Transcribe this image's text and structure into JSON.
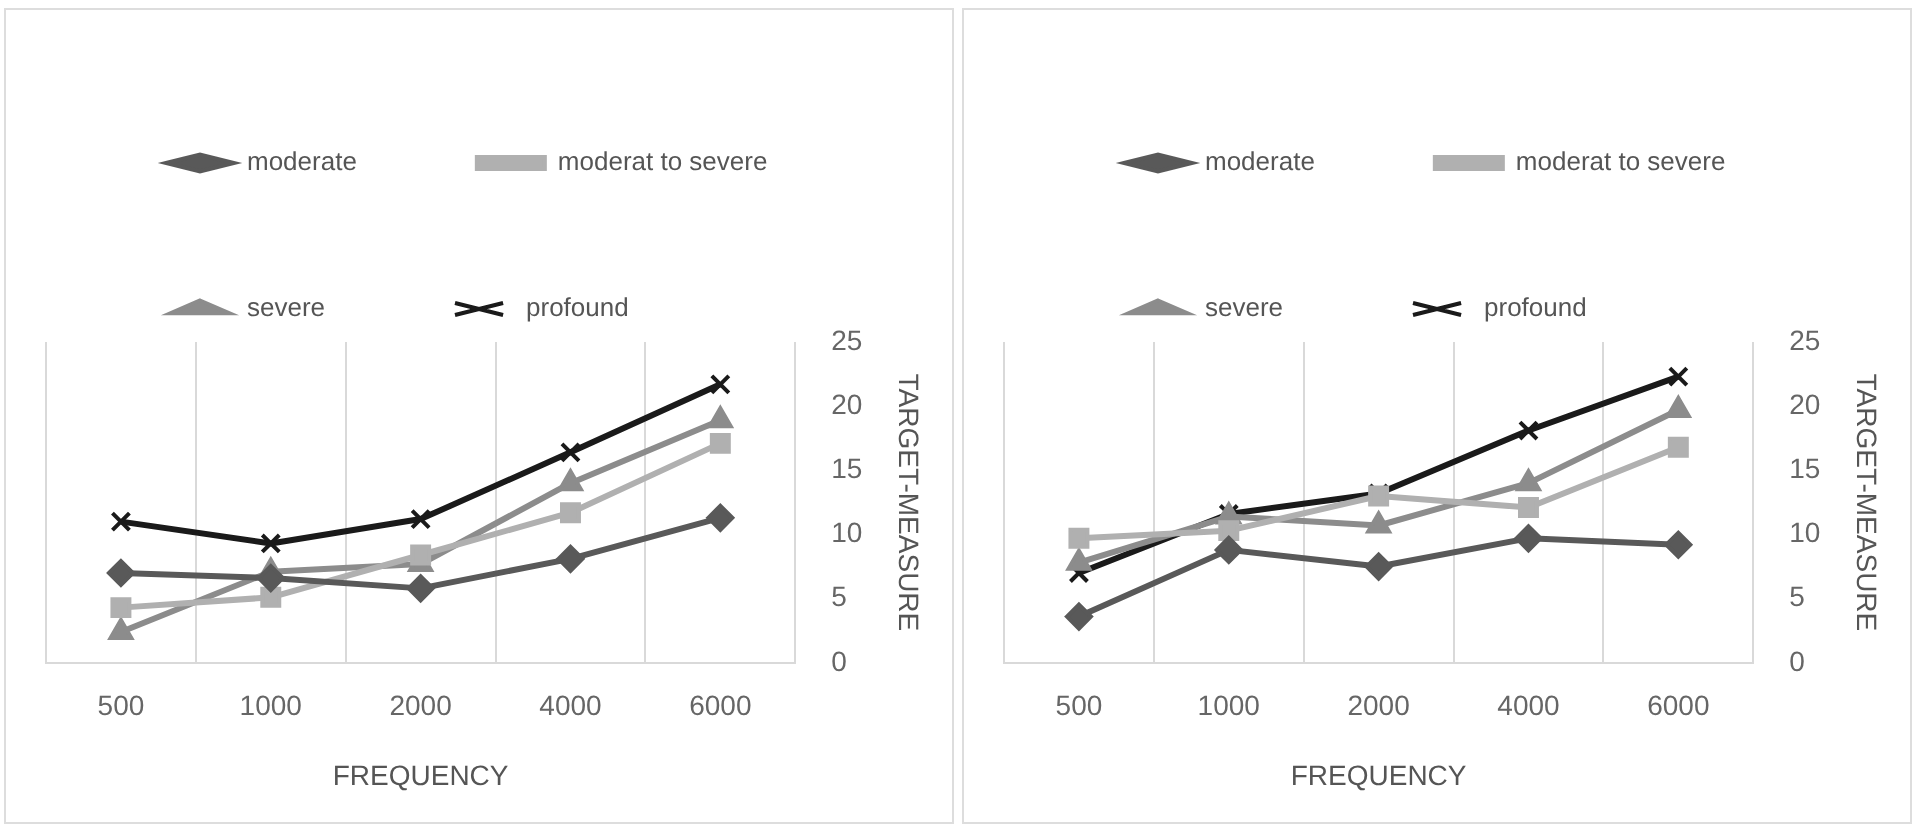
{
  "chart_data": [
    {
      "type": "line",
      "xlabel": "FREQUENCY",
      "ylabel": "TARGET-MEASURE",
      "categories": [
        "500",
        "1000",
        "2000",
        "4000",
        "6000"
      ],
      "ylim": [
        0,
        25
      ],
      "yticks": [
        0,
        5,
        10,
        15,
        20,
        25
      ],
      "grid": "x",
      "legend": "top",
      "series": [
        {
          "name": "moderate",
          "color": "#595959",
          "marker": "diamond",
          "values": [
            7.0,
            6.6,
            5.8,
            8.1,
            11.3
          ]
        },
        {
          "name": "moderat to severe",
          "color": "#b0b0b0",
          "marker": "square",
          "values": [
            4.3,
            5.1,
            8.4,
            11.7,
            17.1
          ]
        },
        {
          "name": "severe",
          "color": "#8c8c8c",
          "marker": "triangle",
          "values": [
            2.4,
            7.1,
            7.7,
            14.0,
            18.9
          ]
        },
        {
          "name": "profound",
          "color": "#1a1a1a",
          "marker": "cross",
          "values": [
            11.0,
            9.3,
            11.2,
            16.4,
            21.7
          ]
        }
      ]
    },
    {
      "type": "line",
      "xlabel": "FREQUENCY",
      "ylabel": "TARGET-MEASURE",
      "categories": [
        "500",
        "1000",
        "2000",
        "4000",
        "6000"
      ],
      "ylim": [
        0,
        25
      ],
      "yticks": [
        0,
        5,
        10,
        15,
        20,
        25
      ],
      "grid": "x",
      "legend": "top",
      "series": [
        {
          "name": "moderate",
          "color": "#595959",
          "marker": "diamond",
          "values": [
            3.6,
            8.8,
            7.5,
            9.7,
            9.2
          ]
        },
        {
          "name": "moderat to severe",
          "color": "#b0b0b0",
          "marker": "square",
          "values": [
            9.7,
            10.3,
            13.0,
            12.1,
            16.8
          ]
        },
        {
          "name": "severe",
          "color": "#8c8c8c",
          "marker": "triangle",
          "values": [
            7.8,
            11.4,
            10.7,
            14.0,
            19.7
          ]
        },
        {
          "name": "profound",
          "color": "#1a1a1a",
          "marker": "cross",
          "values": [
            7.0,
            11.6,
            13.2,
            18.1,
            22.3
          ]
        }
      ]
    }
  ]
}
